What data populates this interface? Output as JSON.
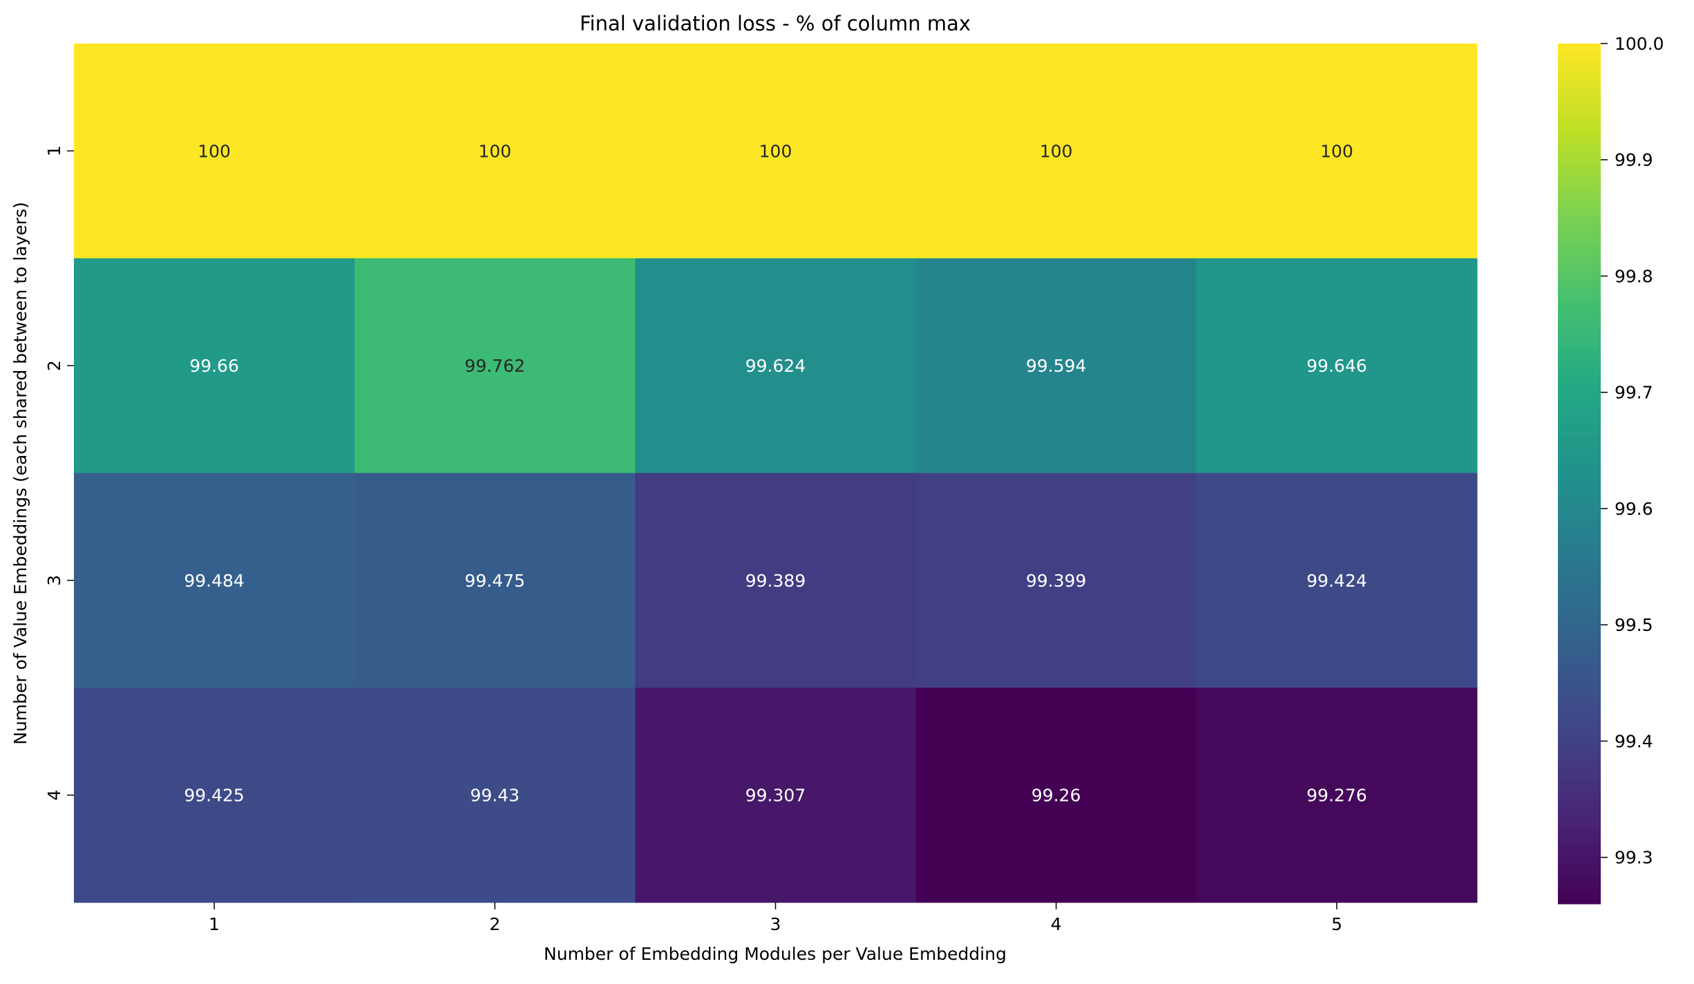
{
  "chart_data": {
    "type": "heatmap",
    "title": "Final validation loss - % of column max",
    "xlabel": "Number of Embedding Modules per Value Embedding",
    "ylabel": "Number of Value Embeddings (each shared between to layers)",
    "x_categories": [
      "1",
      "2",
      "3",
      "4",
      "5"
    ],
    "y_categories": [
      "1",
      "2",
      "3",
      "4"
    ],
    "values": [
      [
        100,
        100,
        100,
        100,
        100
      ],
      [
        99.66,
        99.762,
        99.624,
        99.594,
        99.646
      ],
      [
        99.484,
        99.475,
        99.389,
        99.399,
        99.424
      ],
      [
        99.425,
        99.43,
        99.307,
        99.26,
        99.276
      ]
    ],
    "colormap": "viridis",
    "colorbar": {
      "range": [
        99.26,
        100.0
      ],
      "ticks": [
        "99.3",
        "99.4",
        "99.5",
        "99.6",
        "99.7",
        "99.8",
        "99.9",
        "100.0"
      ]
    },
    "annotation_colors": {
      "light_cells": "#262626",
      "dark_cells": "#ffffff"
    }
  }
}
